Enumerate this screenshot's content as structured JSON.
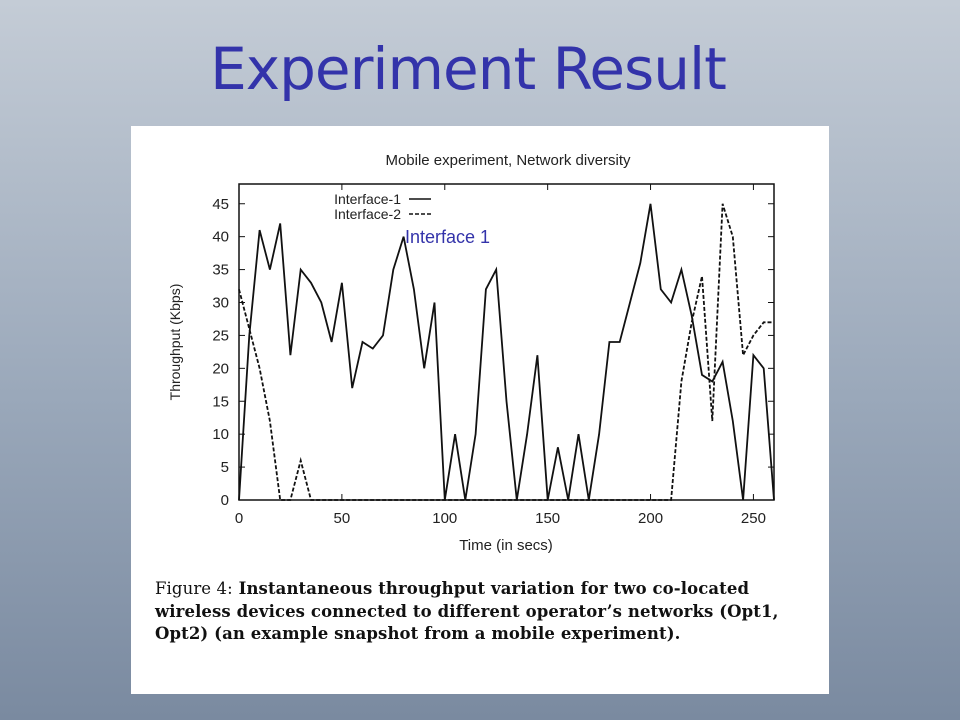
{
  "slide": {
    "title": "Experiment Result"
  },
  "caption": {
    "label": "Figure 4:",
    "text": "Instantaneous throughput variation for two co-located wireless devices connected to different operator’s networks (Opt1, Opt2) (an example snapshot from a mobile experiment)."
  },
  "annotation": {
    "text": "Interface 1",
    "color": "#3333aa"
  },
  "chart_data": {
    "type": "line",
    "title": "Mobile experiment, Network diversity",
    "xlabel": "Time (in secs)",
    "ylabel": "Throughput (Kbps)",
    "xlim": [
      0,
      260
    ],
    "ylim": [
      0,
      48
    ],
    "xticks": [
      0,
      50,
      100,
      150,
      200,
      250
    ],
    "yticks": [
      0,
      5,
      10,
      15,
      20,
      25,
      30,
      35,
      40,
      45
    ],
    "grid": false,
    "legend_position": "top-left",
    "series": [
      {
        "name": "Interface-1",
        "style": "solid",
        "color": "#111111",
        "x": [
          0,
          5,
          10,
          15,
          20,
          25,
          30,
          35,
          40,
          45,
          50,
          55,
          60,
          65,
          70,
          75,
          80,
          85,
          90,
          95,
          100,
          105,
          110,
          115,
          120,
          125,
          130,
          135,
          140,
          145,
          150,
          155,
          160,
          165,
          170,
          175,
          180,
          185,
          190,
          195,
          200,
          205,
          210,
          215,
          220,
          225,
          230,
          235,
          240,
          245,
          250,
          255,
          260
        ],
        "y": [
          0,
          25,
          41,
          35,
          42,
          22,
          35,
          33,
          30,
          24,
          33,
          17,
          24,
          23,
          25,
          35,
          40,
          32,
          20,
          30,
          0,
          10,
          0,
          10,
          32,
          35,
          15,
          0,
          10,
          22,
          0,
          8,
          0,
          10,
          0,
          10,
          24,
          24,
          30,
          36,
          45,
          32,
          30,
          35,
          28,
          19,
          18,
          21,
          12,
          0,
          22,
          20,
          0
        ]
      },
      {
        "name": "Interface-2",
        "style": "dashed",
        "color": "#111111",
        "x": [
          0,
          5,
          10,
          15,
          20,
          25,
          30,
          35,
          40,
          45,
          50,
          55,
          60,
          65,
          70,
          75,
          80,
          85,
          90,
          95,
          100,
          105,
          110,
          115,
          120,
          125,
          130,
          135,
          140,
          145,
          150,
          155,
          160,
          165,
          170,
          175,
          180,
          185,
          190,
          195,
          200,
          205,
          210,
          215,
          220,
          225,
          230,
          235,
          240,
          245,
          250,
          255,
          260
        ],
        "y": [
          32,
          26,
          20,
          12,
          0,
          0,
          6,
          0,
          0,
          0,
          0,
          0,
          0,
          0,
          0,
          0,
          0,
          0,
          0,
          0,
          0,
          0,
          0,
          0,
          0,
          0,
          0,
          0,
          0,
          0,
          0,
          0,
          0,
          0,
          0,
          0,
          0,
          0,
          0,
          0,
          0,
          0,
          0,
          18,
          27,
          34,
          12,
          45,
          40,
          22,
          25,
          27,
          27
        ]
      }
    ]
  }
}
